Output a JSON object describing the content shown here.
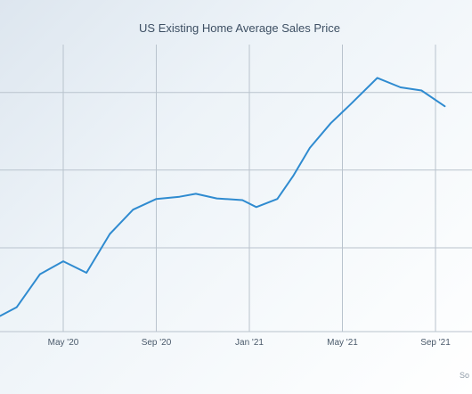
{
  "chart_data": {
    "type": "line",
    "title": "US Existing Home Average Sales Price",
    "xlabel": "",
    "ylabel": "",
    "source_label": "So",
    "x_ticks": [
      {
        "label": "May '20",
        "month_index": 4
      },
      {
        "label": "Sep '20",
        "month_index": 8
      },
      {
        "label": "Jan '21",
        "month_index": 12
      },
      {
        "label": "May '21",
        "month_index": 16
      },
      {
        "label": "Sep '21",
        "month_index": 20
      }
    ],
    "y_gridlines_relative": [
      0.0,
      0.292,
      0.563,
      0.833
    ],
    "grid": true,
    "legend": "none",
    "series": [
      {
        "color": "#2f8bd0",
        "points": [
          {
            "m": 1.3,
            "v": 0.055
          },
          {
            "m": 2.0,
            "v": 0.085
          },
          {
            "m": 3.0,
            "v": 0.2
          },
          {
            "m": 4.0,
            "v": 0.245
          },
          {
            "m": 5.0,
            "v": 0.205
          },
          {
            "m": 6.0,
            "v": 0.34
          },
          {
            "m": 7.0,
            "v": 0.425
          },
          {
            "m": 8.0,
            "v": 0.462
          },
          {
            "m": 9.0,
            "v": 0.47
          },
          {
            "m": 9.7,
            "v": 0.48
          },
          {
            "m": 10.6,
            "v": 0.464
          },
          {
            "m": 11.7,
            "v": 0.458
          },
          {
            "m": 12.3,
            "v": 0.434
          },
          {
            "m": 13.2,
            "v": 0.462
          },
          {
            "m": 13.9,
            "v": 0.544
          },
          {
            "m": 14.6,
            "v": 0.64
          },
          {
            "m": 15.5,
            "v": 0.726
          },
          {
            "m": 16.3,
            "v": 0.788
          },
          {
            "m": 17.5,
            "v": 0.884
          },
          {
            "m": 18.5,
            "v": 0.851
          },
          {
            "m": 19.4,
            "v": 0.84
          },
          {
            "m": 20.4,
            "v": 0.785
          }
        ]
      }
    ]
  }
}
